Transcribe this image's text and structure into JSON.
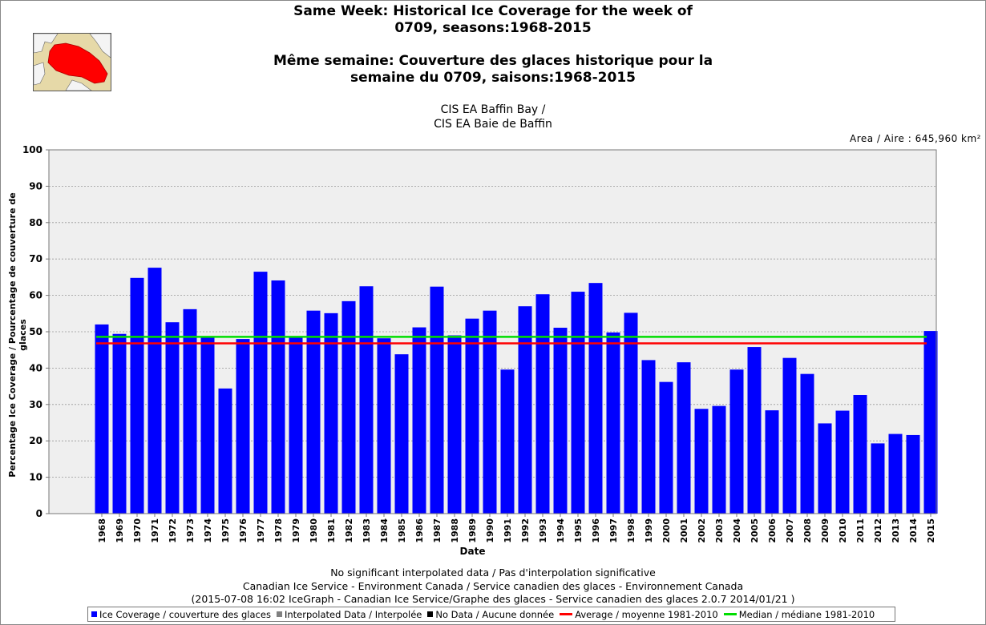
{
  "header": {
    "title_en_1": "Same Week: Historical Ice Coverage for the week of",
    "title_en_2": "0709, seasons:1968-2015",
    "title_fr_1": "Même semaine: Couverture des glaces historique pour la",
    "title_fr_2": "semaine du 0709, saisons:1968-2015",
    "region_1": "CIS EA Baffin Bay /",
    "region_2": "CIS EA Baie de Baffin",
    "area": "Area / Aire : 645,960 km²"
  },
  "footer": {
    "line1": "No significant interpolated data / Pas d'interpolation significative",
    "line2": "Canadian Ice Service - Environment Canada / Service canadien des glaces - Environnement Canada",
    "line3": "(2015-07-08 16:02 IceGraph - Canadian Ice Service/Graphe des glaces - Service canadien des glaces 2.0.7 2014/01/21 )"
  },
  "legend": {
    "ice": "Ice Coverage / couverture des glaces",
    "interp": "Interpolated Data / Interpolée",
    "nodata": "No Data / Aucune donnée",
    "average": "Average / moyenne 1981-2010",
    "median": "Median / médiane 1981-2010"
  },
  "colors": {
    "bar": "#0000ff",
    "average": "#ff0000",
    "median": "#00dd00",
    "interpolated": "#808080",
    "nodata": "#000000",
    "plot_bg": "#efefef",
    "map_land": "#e6d9a8",
    "map_region": "#ff0000"
  },
  "chart_data": {
    "type": "bar",
    "xlabel": "Date",
    "ylabel": "Percentage Ice Coverage / Pourcentage de couverture de glaces",
    "ylim": [
      0,
      100
    ],
    "yticks": [
      0,
      10,
      20,
      30,
      40,
      50,
      60,
      70,
      80,
      90,
      100
    ],
    "grid": true,
    "categories": [
      "1968",
      "1969",
      "1970",
      "1971",
      "1972",
      "1973",
      "1974",
      "1975",
      "1976",
      "1977",
      "1978",
      "1979",
      "1980",
      "1981",
      "1982",
      "1983",
      "1984",
      "1985",
      "1986",
      "1987",
      "1988",
      "1989",
      "1990",
      "1991",
      "1992",
      "1993",
      "1994",
      "1995",
      "1996",
      "1997",
      "1998",
      "1999",
      "2000",
      "2001",
      "2002",
      "2003",
      "2004",
      "2005",
      "2006",
      "2007",
      "2008",
      "2009",
      "2010",
      "2011",
      "2012",
      "2013",
      "2014",
      "2015"
    ],
    "series": [
      {
        "name": "Ice Coverage / couverture des glaces",
        "values": [
          52.0,
          49.4,
          64.8,
          67.6,
          52.6,
          56.2,
          48.4,
          34.4,
          48.0,
          66.5,
          64.1,
          48.6,
          55.8,
          55.1,
          58.4,
          62.5,
          48.2,
          43.8,
          51.2,
          62.4,
          49.0,
          53.6,
          55.8,
          39.6,
          57.0,
          60.3,
          51.1,
          61.0,
          63.4,
          49.8,
          55.2,
          42.2,
          36.2,
          41.6,
          28.8,
          29.6,
          39.6,
          45.8,
          28.4,
          42.8,
          38.4,
          24.8,
          28.3,
          32.6,
          19.3,
          21.9,
          21.6,
          50.2
        ]
      }
    ],
    "average": {
      "name": "Average / moyenne 1981-2010",
      "value": 46.8
    },
    "median": {
      "name": "Median / médiane 1981-2010",
      "value": 48.6
    }
  }
}
